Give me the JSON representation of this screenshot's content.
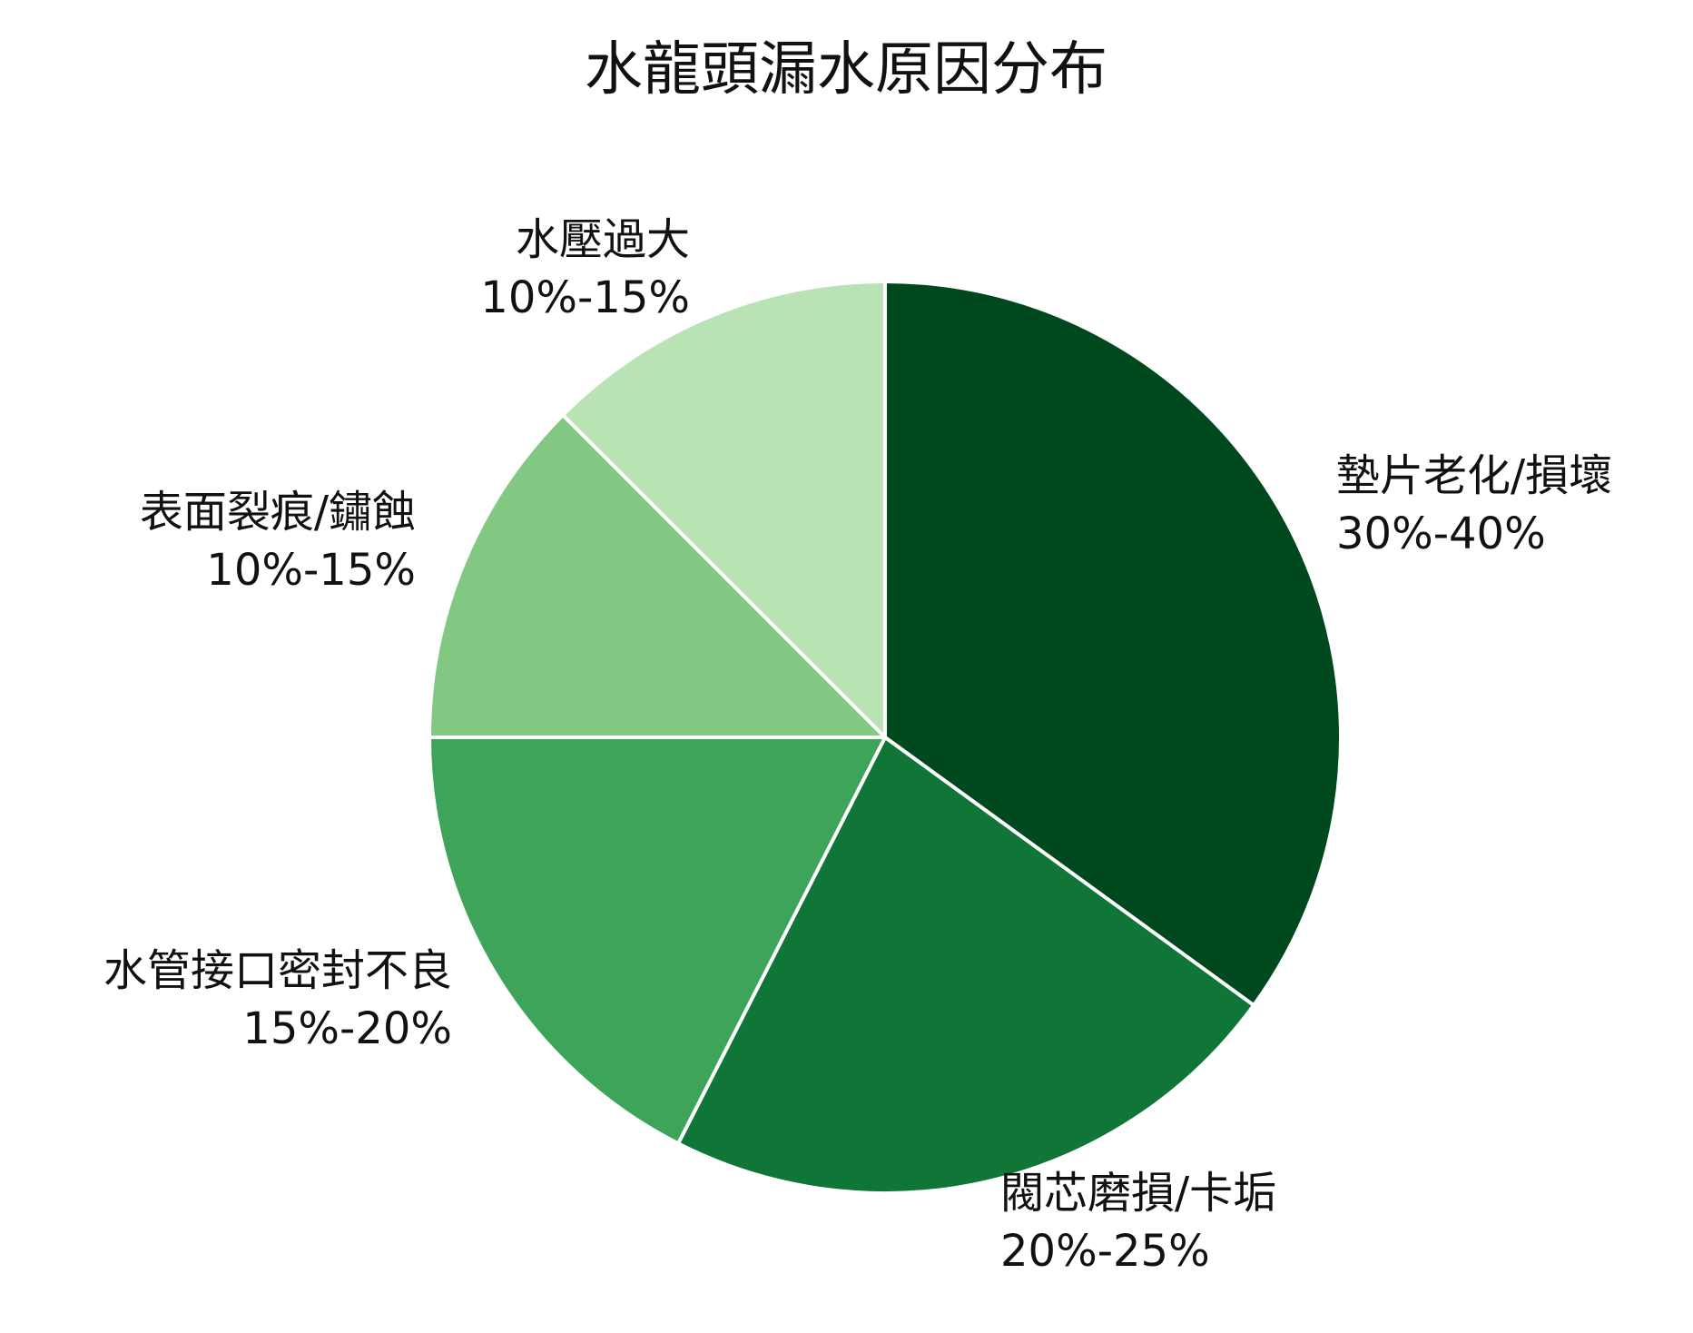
{
  "chart_data": {
    "type": "pie",
    "title": "水龍頭漏水原因分布",
    "slices": [
      {
        "label": "墊片老化/損壞",
        "range": "30%-40%",
        "value": 35,
        "color": "#00491f"
      },
      {
        "label": "閥芯磨損/卡垢",
        "range": "20%-25%",
        "value": 22.5,
        "color": "#0f7637"
      },
      {
        "label": "水管接口密封不良",
        "range": "15%-20%",
        "value": 17.5,
        "color": "#3da45a"
      },
      {
        "label": "表面裂痕/鏽蝕",
        "range": "10%-15%",
        "value": 12.5,
        "color": "#82c882"
      },
      {
        "label": "水壓過大",
        "range": "10%-15%",
        "value": 12.5,
        "color": "#b9e3b4"
      }
    ],
    "start_angle": "12 o'clock",
    "direction": "clockwise",
    "legend": "none"
  }
}
